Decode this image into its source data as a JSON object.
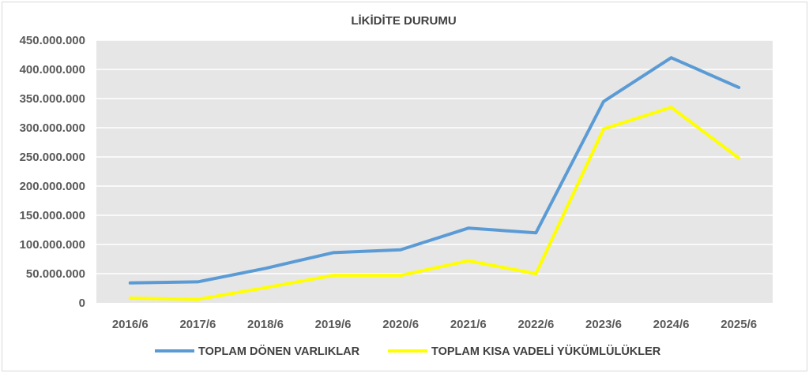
{
  "chart_data": {
    "type": "line",
    "title": "LİKİDİTE DURUMU",
    "xlabel": "",
    "ylabel": "",
    "categories": [
      "2016/6",
      "2017/6",
      "2018/6",
      "2019/6",
      "2020/6",
      "2021/6",
      "2022/6",
      "2023/6",
      "2024/6",
      "2025/6"
    ],
    "y_ticks": [
      "0",
      "50.000.000",
      "100.000.000",
      "150.000.000",
      "200.000.000",
      "250.000.000",
      "300.000.000",
      "350.000.000",
      "400.000.000",
      "450.000.000"
    ],
    "ylim": [
      0,
      450000000
    ],
    "grid": true,
    "legend_position": "bottom",
    "plot_background": "#e6e6e6",
    "series": [
      {
        "name": "TOPLAM DÖNEN VARLIKLAR",
        "color": "#5b9bd5",
        "values": [
          34000000,
          36000000,
          59000000,
          86000000,
          91000000,
          128000000,
          120000000,
          345000000,
          420000000,
          369000000
        ]
      },
      {
        "name": "TOPLAM KISA VADELİ YÜKÜMLÜLÜKLER",
        "color": "#ffff00",
        "values": [
          8000000,
          6000000,
          26000000,
          47000000,
          47000000,
          72000000,
          50000000,
          298000000,
          335000000,
          248000000
        ]
      }
    ]
  }
}
